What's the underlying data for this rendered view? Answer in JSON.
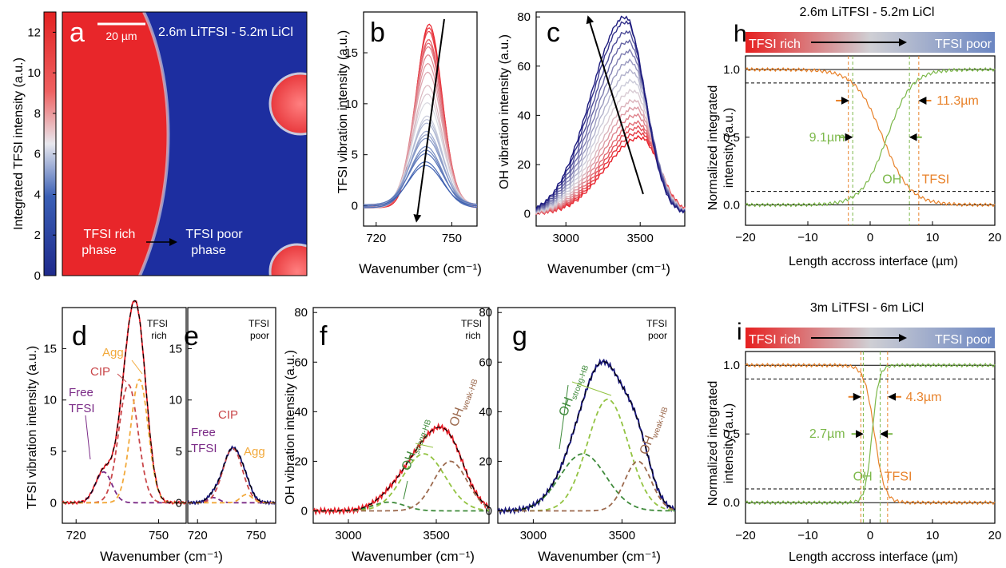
{
  "panels": {
    "a": {
      "letter": "a",
      "title": "2.6m LiTFSI - 5.2m LiCl",
      "scale_bar": "20 µm",
      "ylabel": "Integrated TFSI intensity (a.u.)",
      "cbar_ticks": [
        "0",
        "2",
        "4",
        "6",
        "8",
        "10",
        "12"
      ],
      "rich_label": [
        "TFSI rich",
        "phase"
      ],
      "poor_label": [
        "TFSI poor",
        "phase"
      ]
    },
    "b": {
      "letter": "b",
      "ylabel": "TFSI vibration intensity (a.u.)",
      "xlabel": "Wavenumber (cm⁻¹)",
      "xticks": [
        "720",
        "750"
      ],
      "yticks": [
        "0",
        "5",
        "10",
        "15"
      ]
    },
    "c": {
      "letter": "c",
      "ylabel": "OH vibration intensity (a.u.)",
      "xlabel": "Wavenumber (cm⁻¹)",
      "xticks": [
        "3000",
        "3500"
      ],
      "yticks": [
        "0",
        "20",
        "40",
        "60",
        "80"
      ]
    },
    "d": {
      "letter": "d",
      "corner": [
        "TFSI",
        "rich"
      ],
      "ylabel": "TFSI vibration intensity (a.u.)",
      "xlabel": "Wavenumber (cm⁻¹)",
      "xticks": [
        "720",
        "750"
      ],
      "yticks": [
        "0",
        "5",
        "10",
        "15"
      ],
      "labels": {
        "agg": "Agg",
        "cip": "CIP",
        "free1": "Free",
        "free2": "TFSI"
      }
    },
    "e": {
      "letter": "e",
      "corner": [
        "TFSI",
        "poor"
      ],
      "xticks": [
        "720",
        "750"
      ],
      "yticks": [
        "0",
        "5",
        "10",
        "15"
      ],
      "labels": {
        "cip": "CIP",
        "agg": "Agg",
        "free1": "Free",
        "free2": "TFSI"
      }
    },
    "f": {
      "letter": "f",
      "corner": [
        "TFSI",
        "rich"
      ],
      "ylabel": "OH vibration intensity (a.u.)",
      "xlabel": "Wavenumber (cm⁻¹)",
      "xticks": [
        "3000",
        "3500"
      ],
      "yticks": [
        "0",
        "20",
        "40",
        "60",
        "80"
      ],
      "oh_strong": "OH",
      "oh_strong_sub": "strong-HB",
      "oh_weak": "OH",
      "oh_weak_sub": "weak-HB"
    },
    "g": {
      "letter": "g",
      "corner": [
        "TFSI",
        "poor"
      ],
      "xlabel": "Wavenumber (cm⁻¹)",
      "xticks": [
        "3000",
        "3500"
      ],
      "yticks": [
        "0",
        "20",
        "40",
        "60",
        "80"
      ],
      "oh_strong": "OH",
      "oh_strong_sub": "strong-HB",
      "oh_weak": "OH",
      "oh_weak_sub": "weak-HB"
    },
    "h": {
      "letter": "h",
      "title": "2.6m LiTFSI - 5.2m LiCl",
      "bar_left": "TFSI rich",
      "bar_right": "TFSI poor",
      "ylabel": [
        "Normalized integrated",
        "intensity (a.u.)"
      ],
      "xlabel": "Length accross interface (µm)",
      "xticks": [
        "−20",
        "−10",
        "0",
        "10",
        "20"
      ],
      "yticks": [
        "0.0",
        "0.5",
        "1.0"
      ],
      "w_tfsi": "11.3µm",
      "w_oh": "9.1µm",
      "lbl_oh": "OH",
      "lbl_tfsi": "TFSI"
    },
    "i": {
      "letter": "i",
      "title": "3m LiTFSI - 6m LiCl",
      "bar_left": "TFSI rich",
      "bar_right": "TFSI poor",
      "ylabel": [
        "Normalized integrated",
        "intensity (a.u.)"
      ],
      "xlabel": "Length accross interface (µm)",
      "xticks": [
        "−20",
        "−10",
        "0",
        "10",
        "20"
      ],
      "yticks": [
        "0.0",
        "0.5",
        "1.0"
      ],
      "w_tfsi": "4.3µm",
      "w_oh": "2.7µm",
      "lbl_oh": "OH",
      "lbl_tfsi": "TFSI"
    }
  },
  "colors": {
    "red": "#e8222b",
    "navy": "#1c1a7e",
    "blue": "#3d5fb0",
    "orange": "#e8822a",
    "green": "#7cb84a",
    "purple": "#7a2a86",
    "agg": "#f2a93b",
    "cip": "#c9474a",
    "brown": "#9c6a4e",
    "darkgreen": "#3e8a3a",
    "lightgreen": "#93c342"
  },
  "chart_data": [
    {
      "panel": "b",
      "type": "line",
      "xlabel": "Wavenumber (cm⁻¹)",
      "ylabel": "TFSI vibration intensity (a.u.)",
      "xlim": [
        715,
        760
      ],
      "ylim": [
        -2,
        19
      ],
      "series_note": "family of spectra peaked near 741 cm⁻¹; peak decreases along arrow",
      "peak_heights": [
        18,
        17.5,
        17,
        16.5,
        16,
        15.5,
        15,
        14,
        13,
        12,
        11,
        10,
        9,
        8.5,
        8,
        7.5,
        7,
        6.5,
        6,
        5.5,
        5,
        4.5,
        4
      ],
      "peak_center": 741
    },
    {
      "panel": "c",
      "type": "line",
      "xlabel": "Wavenumber (cm⁻¹)",
      "ylabel": "OH vibration intensity (a.u.)",
      "xlim": [
        2800,
        3800
      ],
      "ylim": [
        -5,
        82
      ],
      "peak_heights": [
        31,
        33,
        35,
        37,
        40,
        43,
        46,
        50,
        54,
        58,
        62,
        66,
        70,
        74,
        78,
        80
      ],
      "peak_center": [
        3500,
        3400
      ]
    },
    {
      "panel": "d",
      "type": "line",
      "xlim": [
        715,
        760
      ],
      "ylim": [
        -2,
        19
      ],
      "components": [
        {
          "name": "Free TFSI",
          "center": 730,
          "height": 3,
          "width": 3
        },
        {
          "name": "CIP",
          "center": 739,
          "height": 11.5,
          "width": 3.5
        },
        {
          "name": "Agg",
          "center": 743,
          "height": 12,
          "width": 3.2
        }
      ],
      "total_peak": 18.5
    },
    {
      "panel": "e",
      "type": "line",
      "xlim": [
        715,
        760
      ],
      "ylim": [
        -2,
        19
      ],
      "components": [
        {
          "name": "Free TFSI",
          "center": 728,
          "height": 0.5,
          "width": 3
        },
        {
          "name": "CIP",
          "center": 738,
          "height": 5.3,
          "width": 5
        },
        {
          "name": "Agg",
          "center": 745,
          "height": 0.8,
          "width": 3
        }
      ],
      "total_peak": 5.5
    },
    {
      "panel": "f",
      "type": "line",
      "xlim": [
        2800,
        3800
      ],
      "ylim": [
        -5,
        82
      ],
      "components": [
        {
          "name": "OH strong-HB (dark)",
          "center": 3230,
          "height": 3.5,
          "width": 90
        },
        {
          "name": "OH strong-HB",
          "center": 3430,
          "height": 23,
          "width": 120
        },
        {
          "name": "OH weak-HB",
          "center": 3580,
          "height": 20,
          "width": 95
        }
      ],
      "total_peak": 32
    },
    {
      "panel": "g",
      "type": "line",
      "xlim": [
        2800,
        3800
      ],
      "ylim": [
        -5,
        82
      ],
      "components": [
        {
          "name": "OH strong-HB (dark)",
          "center": 3280,
          "height": 23,
          "width": 130
        },
        {
          "name": "OH strong-HB",
          "center": 3420,
          "height": 45,
          "width": 115
        },
        {
          "name": "OH weak-HB",
          "center": 3590,
          "height": 20,
          "width": 75
        }
      ],
      "total_peak": 61
    },
    {
      "panel": "h",
      "type": "line",
      "xlabel": "Length accross interface (µm)",
      "ylabel": "Normalized integrated intensity (a.u.)",
      "xlim": [
        -20,
        20
      ],
      "ylim": [
        -0.15,
        1.1
      ],
      "series": [
        {
          "name": "TFSI",
          "center": 2.0,
          "width": 2.2,
          "direction": "decreasing"
        },
        {
          "name": "OH",
          "center": 2.7,
          "width": 2.0,
          "direction": "increasing"
        }
      ],
      "hlines": [
        0.9,
        0.1
      ],
      "vlines_orange": [
        -3.5,
        7.8
      ],
      "vlines_green": [
        -2.8,
        6.3
      ],
      "widths": {
        "TFSI": 11.3,
        "OH": 9.1
      }
    },
    {
      "panel": "i",
      "type": "line",
      "xlabel": "Length accross interface (µm)",
      "ylabel": "Normalized integrated intensity (a.u.)",
      "xlim": [
        -20,
        20
      ],
      "ylim": [
        -0.15,
        1.1
      ],
      "series": [
        {
          "name": "TFSI",
          "center": 0.7,
          "width": 0.8,
          "direction": "decreasing"
        },
        {
          "name": "OH",
          "center": 0.3,
          "width": 0.55,
          "direction": "increasing"
        }
      ],
      "hlines": [
        0.9,
        0.1
      ],
      "vlines_orange": [
        -1.5,
        2.8
      ],
      "vlines_green": [
        -1.1,
        1.6
      ],
      "widths": {
        "TFSI": 4.3,
        "OH": 2.7
      }
    }
  ]
}
